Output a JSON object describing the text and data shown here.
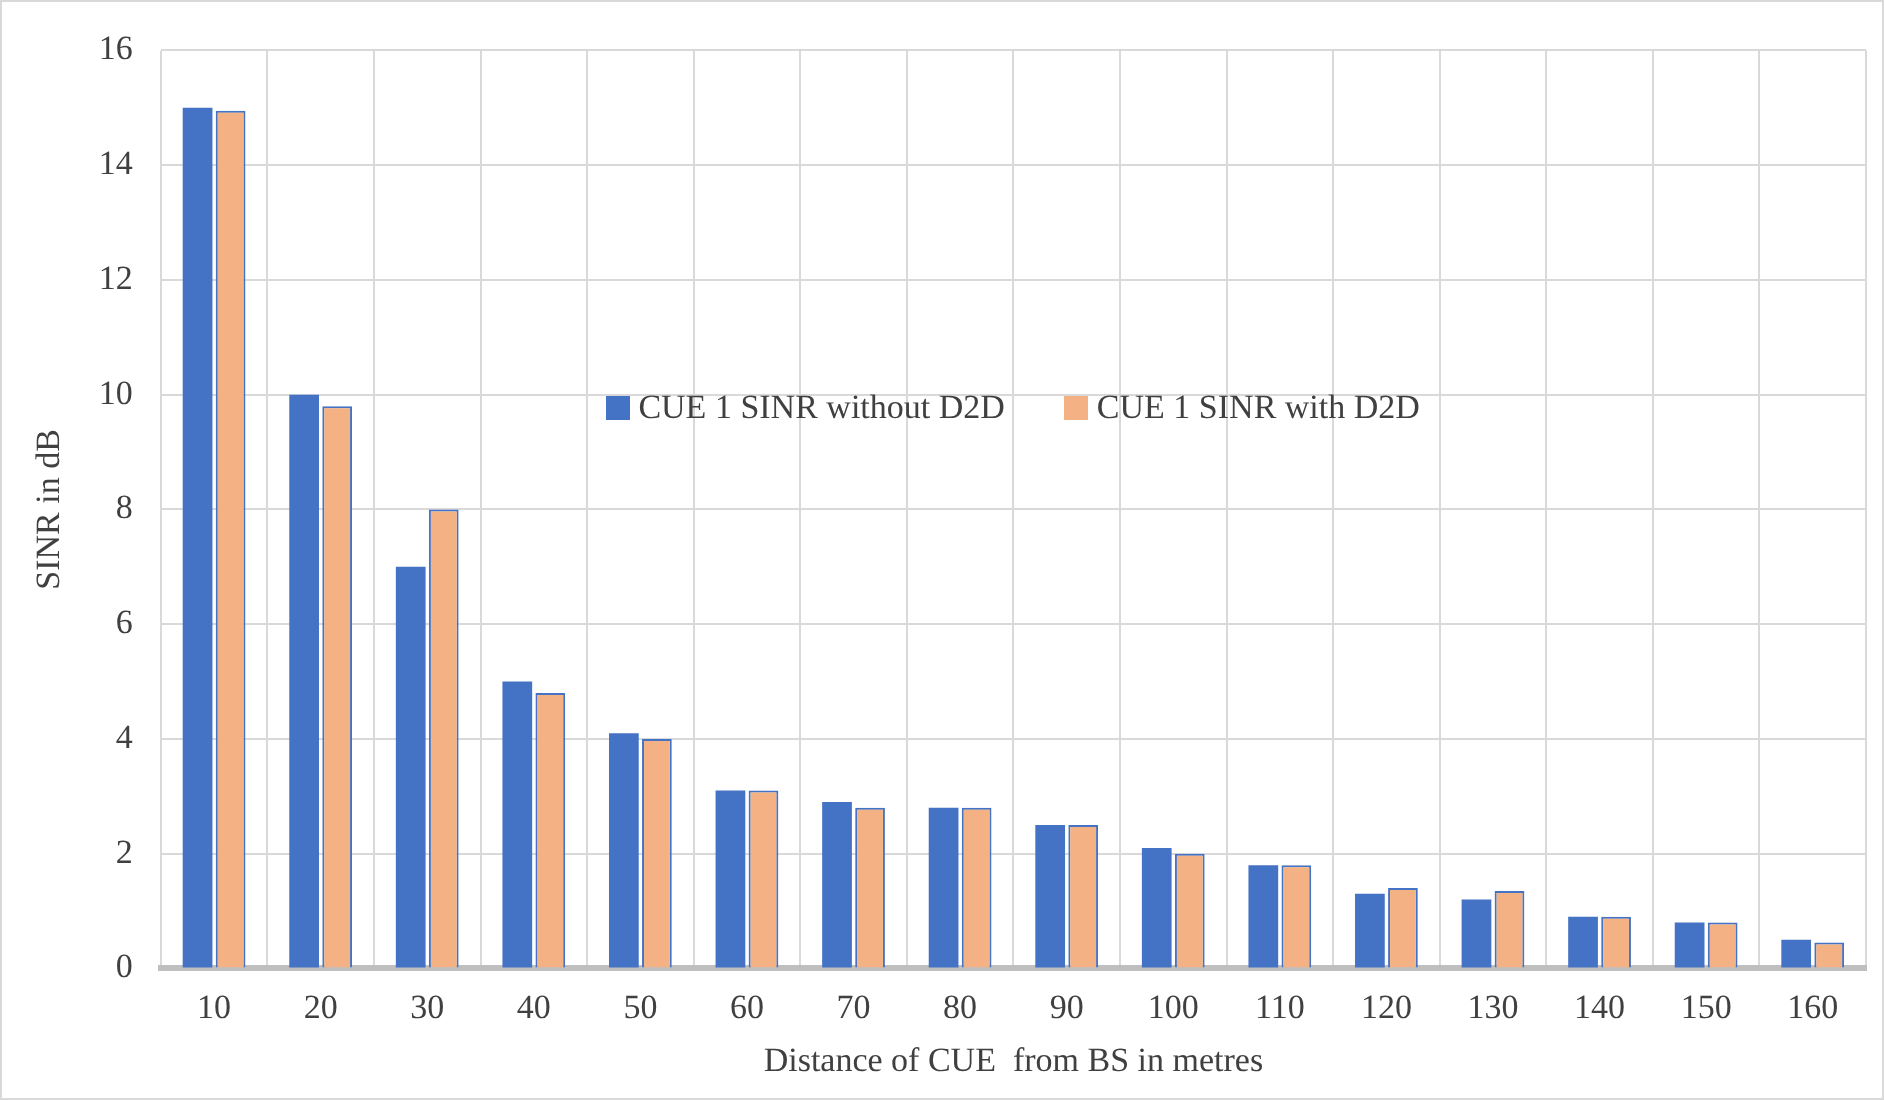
{
  "chart_data": {
    "type": "bar",
    "xlabel": "Distance of CUE  from BS in metres",
    "ylabel": "SINR in dB",
    "categories": [
      "10",
      "20",
      "30",
      "40",
      "50",
      "60",
      "70",
      "80",
      "90",
      "100",
      "110",
      "120",
      "130",
      "140",
      "150",
      "160"
    ],
    "series": [
      {
        "name": "CUE 1 SINR without D2D",
        "color": "#4472c4",
        "values": [
          15,
          10,
          7,
          5,
          4.1,
          3.1,
          2.9,
          2.8,
          2.5,
          2.1,
          1.8,
          1.3,
          1.2,
          0.9,
          0.8,
          0.5
        ]
      },
      {
        "name": "CUE 1 SINR with D2D",
        "color": "#f4b183",
        "values": [
          14.95,
          9.8,
          8,
          4.8,
          4,
          3.1,
          2.8,
          2.8,
          2.5,
          2,
          1.8,
          1.4,
          1.35,
          0.9,
          0.8,
          0.45
        ]
      }
    ],
    "ylim": [
      0,
      16
    ],
    "yticks": [
      0,
      2,
      4,
      6,
      8,
      10,
      12,
      14,
      16
    ],
    "grid": true,
    "legend": "center"
  }
}
